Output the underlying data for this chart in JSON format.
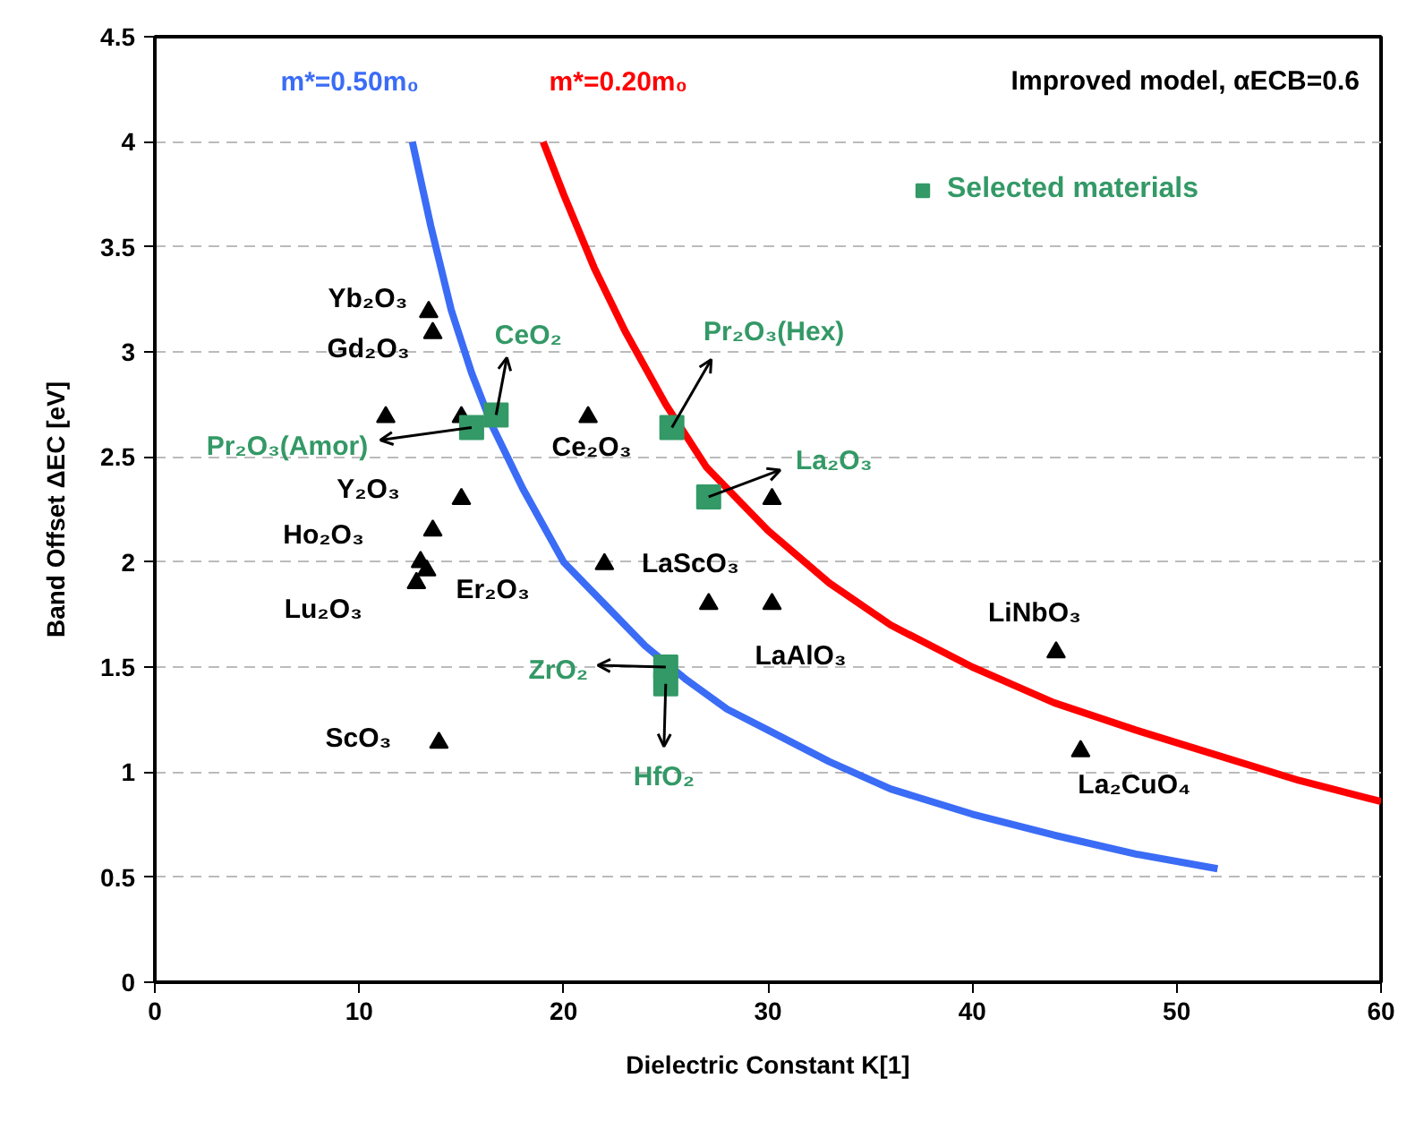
{
  "chart_data": {
    "type": "scatter",
    "xlabel": "Dielectric Constant K[1]",
    "ylabel": "Band Offset ΔEC [eV]",
    "xlim": [
      0,
      60
    ],
    "ylim": [
      0,
      4.5
    ],
    "xticks": [
      0,
      10,
      20,
      30,
      40,
      50,
      60
    ],
    "yticks": [
      0,
      0.5,
      1,
      1.5,
      2,
      2.5,
      3,
      3.5,
      4,
      4.5
    ],
    "grid": "y",
    "legend": "top right",
    "series": [
      {
        "name": "m*=0.50m₀",
        "type": "line",
        "color": "#3b6cf6",
        "x": [
          12.6,
          13.5,
          14.5,
          15.5,
          16.5,
          18,
          20,
          22,
          24,
          26,
          28,
          30,
          33,
          36,
          40,
          44,
          48,
          52
        ],
        "values": [
          4.0,
          3.6,
          3.2,
          2.9,
          2.65,
          2.35,
          2.0,
          1.8,
          1.6,
          1.44,
          1.3,
          1.2,
          1.05,
          0.92,
          0.8,
          0.7,
          0.61,
          0.54
        ]
      },
      {
        "name": "m*=0.20m₀",
        "type": "line",
        "color": "#ff0000",
        "x": [
          19,
          20,
          21.5,
          23,
          25,
          27,
          30,
          33,
          36,
          40,
          44,
          48,
          52,
          56,
          60
        ],
        "values": [
          4.0,
          3.75,
          3.4,
          3.1,
          2.75,
          2.45,
          2.15,
          1.9,
          1.7,
          1.5,
          1.33,
          1.2,
          1.08,
          0.96,
          0.86
        ]
      },
      {
        "marker": "triangle",
        "color": "#000000",
        "x": [
          13.4,
          13.6,
          11.3,
          15.0,
          21.2,
          15.0,
          13.6,
          13.0,
          13.3,
          12.8,
          13.9,
          22.0,
          27.1,
          30.2,
          30.2,
          44.1,
          45.3
        ],
        "values": [
          3.19,
          3.09,
          2.69,
          2.69,
          2.69,
          2.3,
          2.15,
          2.0,
          1.96,
          1.9,
          1.14,
          1.99,
          1.8,
          1.8,
          2.3,
          1.57,
          1.1
        ]
      },
      {
        "name": "Selected materials",
        "marker": "square",
        "color": "#339966",
        "x": [
          15.5,
          16.7,
          25.3,
          27.1,
          25.0,
          25.0
        ],
        "values": [
          2.64,
          2.7,
          2.64,
          2.31,
          1.5,
          1.42
        ]
      }
    ],
    "annotations": [
      {
        "text": "Yb₂O₃",
        "x": 13.4,
        "y": 3.19
      },
      {
        "text": "Gd₂O₃",
        "x": 13.6,
        "y": 3.09
      },
      {
        "text": "Pr₂O₃(Amor)",
        "x": 15.5,
        "y": 2.64
      },
      {
        "text": "CeO₂",
        "x": 16.7,
        "y": 2.7
      },
      {
        "text": "Y₂O₃",
        "x": 15.0,
        "y": 2.3
      },
      {
        "text": "Ho₂O₃",
        "x": 13.6,
        "y": 2.15
      },
      {
        "text": "Lu₂O₃",
        "x": 12.8,
        "y": 1.9
      },
      {
        "text": "Er₂O₃",
        "x": 13.3,
        "y": 1.96
      },
      {
        "text": "ScO₃",
        "x": 13.9,
        "y": 1.14
      },
      {
        "text": "Ce₂O₃",
        "x": 21.2,
        "y": 2.69
      },
      {
        "text": "Pr₂O₃(Hex)",
        "x": 25.3,
        "y": 2.64
      },
      {
        "text": "La₂O₃",
        "x": 27.1,
        "y": 2.31
      },
      {
        "text": "LaScO₃",
        "x": 22.0,
        "y": 1.99
      },
      {
        "text": "LaAlO₃",
        "x": 30.2,
        "y": 1.8
      },
      {
        "text": "ZrO₂",
        "x": 25.0,
        "y": 1.5
      },
      {
        "text": "HfO₂",
        "x": 25.0,
        "y": 1.42
      },
      {
        "text": "LiNbO₃",
        "x": 44.1,
        "y": 1.57
      },
      {
        "text": "La₂CuO₄",
        "x": 45.3,
        "y": 1.1
      },
      "Improved model, αECB=0.6"
    ]
  }
}
